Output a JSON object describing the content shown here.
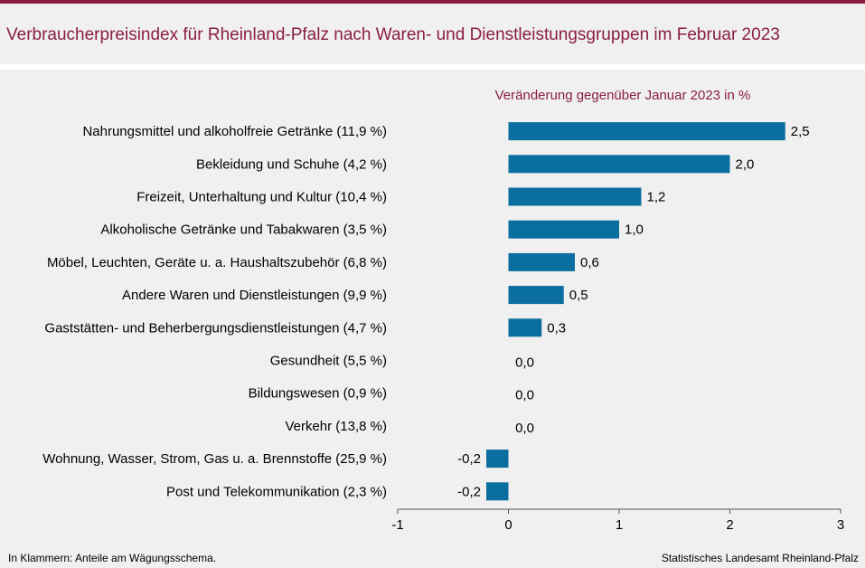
{
  "header": {
    "title": "Verbraucherpreisindex für Rheinland-Pfalz nach Waren- und Dienstleistungsgruppen im Februar 2023"
  },
  "colors": {
    "bar": "#0b6ea1",
    "accent": "#8b1e3f"
  },
  "chart_data": {
    "type": "bar",
    "orientation": "horizontal",
    "subtitle": "Veränderung gegenüber Januar 2023 in %",
    "categories": [
      "Nahrungsmittel und alkoholfreie Getränke (11,9 %)",
      "Bekleidung und Schuhe (4,2 %)",
      "Freizeit, Unterhaltung und Kultur (10,4 %)",
      "Alkoholische Getränke und Tabakwaren (3,5 %)",
      "Möbel, Leuchten, Geräte u. a. Haushaltszubehör (6,8 %)",
      "Andere Waren und Dienstleistungen (9,9 %)",
      "Gaststätten- und Beherbergungsdienstleistungen (4,7 %)",
      "Gesundheit (5,5 %)",
      "Bildungswesen (0,9 %)",
      "Verkehr (13,8 %)",
      "Wohnung, Wasser, Strom, Gas u. a. Brennstoffe (25,9 %)",
      "Post und Telekommunikation (2,3 %)"
    ],
    "values": [
      2.5,
      2.0,
      1.2,
      1.0,
      0.6,
      0.5,
      0.3,
      0.0,
      0.0,
      0.0,
      -0.2,
      -0.2
    ],
    "value_labels": [
      "2,5",
      "2,0",
      "1,2",
      "1,0",
      "0,6",
      "0,5",
      "0,3",
      "0,0",
      "0,0",
      "0,0",
      "-0,2",
      "-0,2"
    ],
    "xlim": [
      -1,
      3
    ],
    "xticks": [
      -1,
      0,
      1,
      2,
      3
    ],
    "xtick_labels": [
      "-1",
      "0",
      "1",
      "2",
      "3"
    ],
    "grid": false
  },
  "footer": {
    "note": "In Klammern: Anteile am Wägungsschema.",
    "source": "Statistisches Landesamt Rheinland-Pfalz"
  }
}
